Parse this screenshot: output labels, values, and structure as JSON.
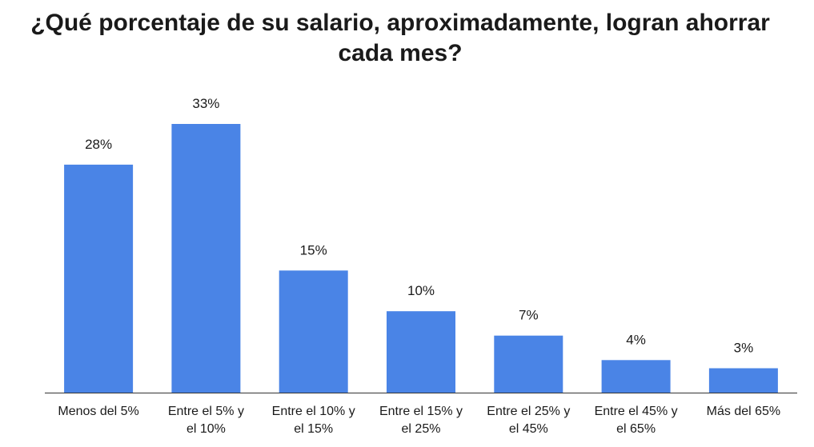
{
  "chart_data": {
    "type": "bar",
    "title": "¿Qué porcentaje de su salario, aproximadamente, logran ahorrar cada mes?",
    "categories": [
      "Menos del 5%",
      "Entre el 5% y el 10%",
      "Entre el 10% y el 15%",
      "Entre el 15% y el 25%",
      "Entre el 25% y el 45%",
      "Entre el 45% y el 65%",
      "Más del 65%"
    ],
    "category_lines": [
      [
        "Menos del 5%"
      ],
      [
        "Entre el 5% y",
        "el 10%"
      ],
      [
        "Entre el 10% y",
        "el 15%"
      ],
      [
        "Entre el 15% y",
        "el 25%"
      ],
      [
        "Entre el 25% y",
        "el 45%"
      ],
      [
        "Entre el 45% y",
        "el 65%"
      ],
      [
        "Más del 65%"
      ]
    ],
    "values": [
      28,
      33,
      15,
      10,
      7,
      4,
      3
    ],
    "value_labels": [
      "28%",
      "33%",
      "15%",
      "10%",
      "7%",
      "4%",
      "3%"
    ],
    "xlabel": "",
    "ylabel": "",
    "ylim": [
      0,
      33
    ],
    "grid": false,
    "legend": "none",
    "bar_color": "#4a84e6"
  }
}
